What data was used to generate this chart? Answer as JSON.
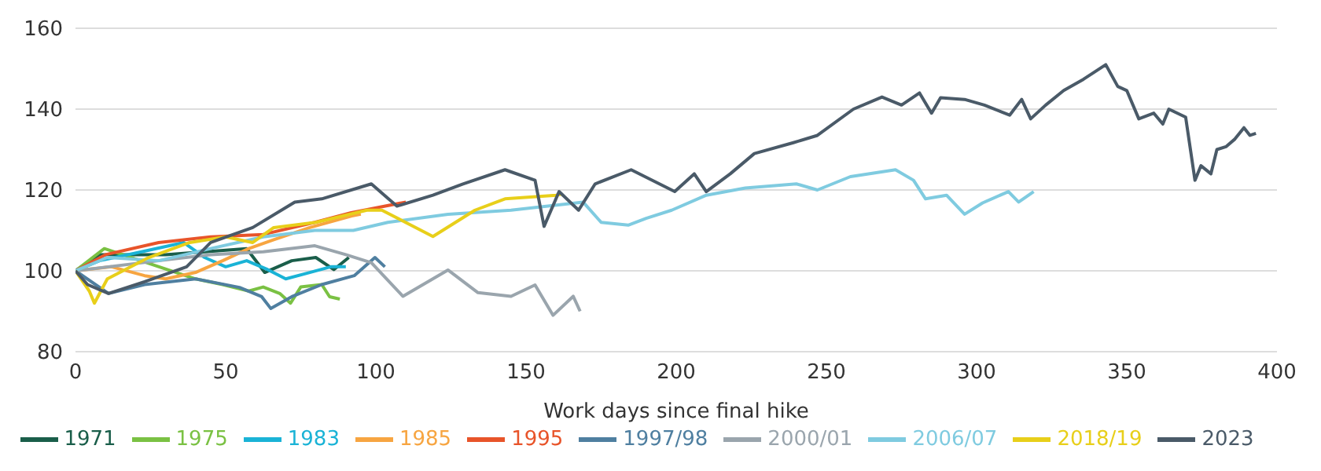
{
  "chart_data": {
    "type": "line",
    "xlabel": "Work days since final hike",
    "xlim": [
      0,
      400
    ],
    "xticks": [
      0,
      50,
      100,
      150,
      200,
      250,
      300,
      350,
      400
    ],
    "ylim": [
      80,
      160
    ],
    "yticks": [
      80,
      100,
      120,
      140,
      160
    ],
    "grid": "y",
    "legend": "bottom",
    "marker": "none",
    "line_style": "solid",
    "series": [
      {
        "name": "1971",
        "color": "#1a5e4a",
        "x": [
          0,
          8,
          30,
          57,
          63,
          72,
          80,
          86,
          91
        ],
        "values": [
          100,
          104,
          104,
          105.5,
          99.6,
          102.5,
          103.3,
          100.3,
          103.3
        ]
      },
      {
        "name": "1975",
        "color": "#7ac143",
        "x": [
          0,
          9.6,
          33.5,
          40,
          49,
          57.7,
          62.5,
          68,
          71.6,
          75,
          82,
          84.6,
          88
        ],
        "values": [
          100,
          105.5,
          99.6,
          98,
          96.6,
          95,
          96,
          94.4,
          92,
          96,
          96.6,
          93.6,
          93
        ]
      },
      {
        "name": "1983",
        "color": "#1ab3d6",
        "x": [
          0,
          8,
          22,
          36,
          43,
          50,
          57,
          64,
          70,
          78,
          85,
          90
        ],
        "values": [
          100,
          102.5,
          104.7,
          107,
          103.3,
          101,
          102.5,
          100.3,
          98,
          99.6,
          101,
          101
        ]
      },
      {
        "name": "1985",
        "color": "#f7a541",
        "x": [
          0,
          12,
          23,
          30,
          40,
          49,
          57.7,
          66,
          78,
          92,
          95
        ],
        "values": [
          100,
          101,
          98.8,
          98,
          99.6,
          102.5,
          105.5,
          107.7,
          110.7,
          113.6,
          114
        ]
      },
      {
        "name": "1995",
        "color": "#e8542a",
        "x": [
          0,
          10,
          27.7,
          45,
          62.5,
          79.7,
          91.8,
          110
        ],
        "values": [
          100,
          104,
          107,
          108.4,
          109,
          112,
          114.4,
          117
        ]
      },
      {
        "name": "1997/98",
        "color": "#4f7fa0",
        "x": [
          0,
          11,
          23,
          40,
          54.6,
          62,
          65,
          72,
          82,
          92.8,
          99.7,
          103
        ],
        "values": [
          100,
          94.4,
          96.6,
          98,
          95.9,
          93.6,
          90.7,
          93.6,
          96.6,
          98.8,
          103.3,
          101
        ]
      },
      {
        "name": "2000/01",
        "color": "#9aa5ad",
        "x": [
          0,
          27.7,
          45,
          62.5,
          79.7,
          90,
          98.5,
          109,
          124,
          134,
          145,
          153,
          159,
          165.7,
          168
        ],
        "values": [
          100,
          102.5,
          104,
          104.7,
          106.2,
          104,
          102,
          93.7,
          100.2,
          94.6,
          93.7,
          96.5,
          89,
          93.7,
          90
        ]
      },
      {
        "name": "2006/07",
        "color": "#7fcbe0",
        "x": [
          0,
          10.6,
          27.7,
          45,
          62.5,
          79.7,
          92.5,
          104,
          124,
          145,
          169,
          175,
          184,
          190,
          198.5,
          210,
          223,
          240,
          247,
          258,
          273,
          279,
          283,
          290,
          296,
          302,
          310.6,
          314,
          319
        ],
        "values": [
          100,
          103.3,
          102.5,
          105.5,
          108.4,
          110,
          110,
          112,
          114,
          115,
          117,
          112,
          111.3,
          113,
          115,
          118.7,
          120.5,
          121.5,
          120,
          123.3,
          125,
          122.4,
          117.8,
          118.7,
          114,
          116.8,
          119.6,
          117,
          119.6
        ]
      },
      {
        "name": "2018/19",
        "color": "#e8cf1a",
        "x": [
          0,
          4.6,
          6.3,
          10.6,
          24.4,
          38,
          50,
          59,
          66,
          80,
          97,
          102,
          119,
          133,
          143,
          160,
          162
        ],
        "values": [
          100,
          95,
          92,
          98,
          103.3,
          107,
          108.4,
          107,
          110.7,
          112,
          115,
          115,
          108.5,
          115,
          117.8,
          118.7,
          119
        ]
      },
      {
        "name": "2023",
        "color": "#4a5a68",
        "x": [
          0,
          4,
          11,
          23,
          37,
          45,
          59,
          73,
          82,
          98.5,
          107,
          119,
          129,
          143,
          153,
          156,
          161,
          167.5,
          173,
          185,
          199.5,
          206,
          210,
          218,
          226,
          239,
          247,
          259,
          268.5,
          275,
          281,
          285,
          288,
          296,
          302.6,
          311,
          315,
          318,
          323,
          329,
          335.6,
          343,
          347,
          350,
          354,
          359,
          362,
          364,
          369.6,
          372.7,
          374.7,
          378,
          380,
          383,
          386,
          389,
          391,
          393
        ],
        "values": [
          100,
          96.6,
          94.4,
          97.3,
          101,
          107,
          110.7,
          117,
          117.8,
          121.5,
          116,
          118.7,
          121.5,
          125,
          122.4,
          111,
          119.6,
          115,
          121.5,
          125,
          119.6,
          124,
          119.6,
          124,
          129,
          131.7,
          133.5,
          140,
          143,
          141,
          144,
          139,
          142.8,
          142.4,
          141,
          138.5,
          142.4,
          137.6,
          141,
          144.6,
          147.4,
          151,
          145.6,
          144.6,
          137.6,
          139,
          136.3,
          140,
          138,
          122.4,
          126,
          124,
          130,
          130.7,
          132.6,
          135.4,
          133.5,
          134
        ]
      }
    ]
  }
}
